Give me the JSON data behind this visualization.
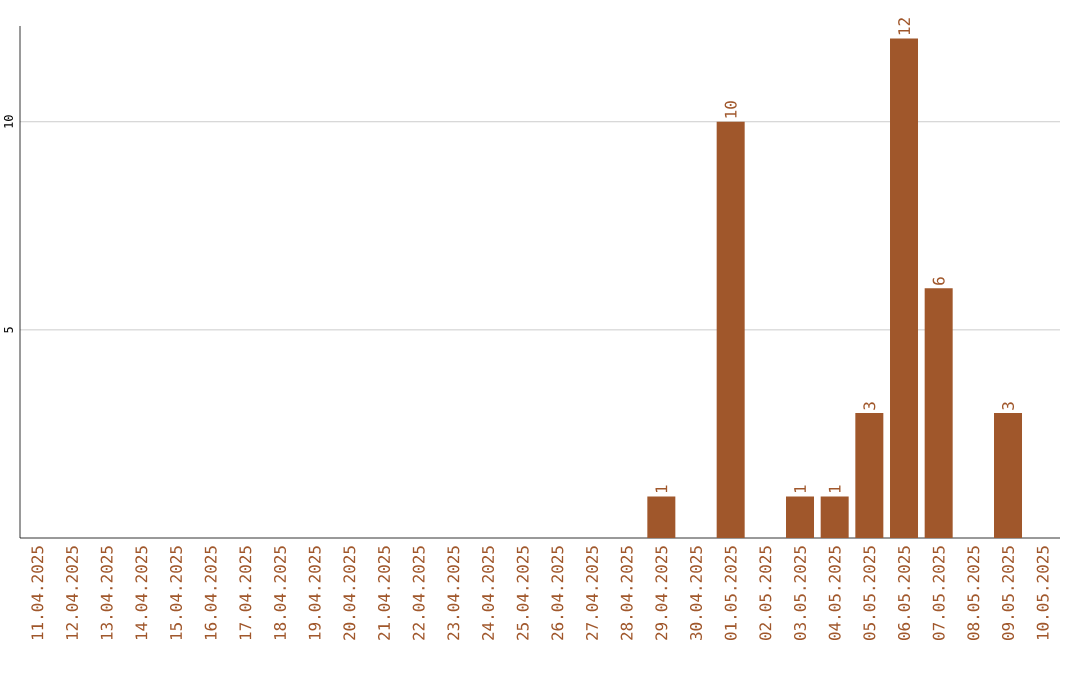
{
  "chart_data": {
    "type": "bar",
    "categories": [
      "11.04.2025",
      "12.04.2025",
      "13.04.2025",
      "14.04.2025",
      "15.04.2025",
      "16.04.2025",
      "17.04.2025",
      "18.04.2025",
      "19.04.2025",
      "20.04.2025",
      "21.04.2025",
      "22.04.2025",
      "23.04.2025",
      "24.04.2025",
      "25.04.2025",
      "26.04.2025",
      "27.04.2025",
      "28.04.2025",
      "29.04.2025",
      "30.04.2025",
      "01.05.2025",
      "02.05.2025",
      "03.05.2025",
      "04.05.2025",
      "05.05.2025",
      "06.05.2025",
      "07.05.2025",
      "08.05.2025",
      "09.05.2025",
      "10.05.2025"
    ],
    "values": [
      0,
      0,
      0,
      0,
      0,
      0,
      0,
      0,
      0,
      0,
      0,
      0,
      0,
      0,
      0,
      0,
      0,
      0,
      1,
      0,
      10,
      0,
      1,
      1,
      3,
      12,
      6,
      0,
      3,
      0
    ],
    "value_labels": [
      null,
      null,
      null,
      null,
      null,
      null,
      null,
      null,
      null,
      null,
      null,
      null,
      null,
      null,
      null,
      null,
      null,
      null,
      "1",
      null,
      "10",
      null,
      "1",
      "1",
      "3",
      "12",
      "6",
      null,
      "3",
      null
    ],
    "color": "#a0572b",
    "ylim": [
      0,
      12.3
    ],
    "yticks": [
      5,
      10
    ],
    "grid": "y"
  }
}
